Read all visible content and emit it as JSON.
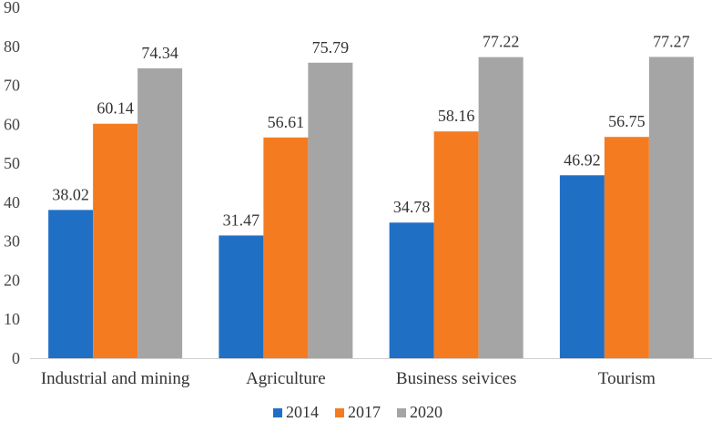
{
  "chart_data": {
    "type": "bar",
    "title": "",
    "xlabel": "",
    "ylabel": "",
    "ylim": [
      0,
      90
    ],
    "yticks": [
      0,
      10,
      20,
      30,
      40,
      50,
      60,
      70,
      80,
      90
    ],
    "grid": false,
    "legend_position": "bottom",
    "categories": [
      "Industrial and mining",
      "Agriculture",
      "Business seivices",
      "Tourism"
    ],
    "series": [
      {
        "name": "2014",
        "color": "#1f6fc5",
        "values": [
          38.02,
          31.47,
          34.78,
          46.92
        ]
      },
      {
        "name": "2017",
        "color": "#f47b20",
        "values": [
          60.14,
          56.61,
          58.16,
          56.75
        ]
      },
      {
        "name": "2020",
        "color": "#a5a5a5",
        "values": [
          74.34,
          75.79,
          77.22,
          77.27
        ]
      }
    ]
  }
}
